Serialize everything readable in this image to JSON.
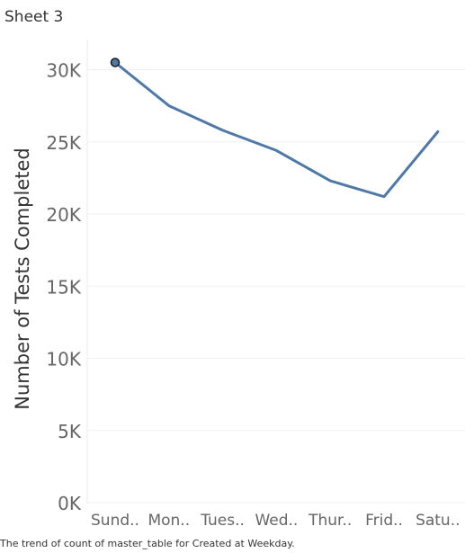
{
  "sheet": {
    "title": "Sheet 3"
  },
  "caption": "The trend of count of master_table for Created at Weekday.",
  "colors": {
    "line": "#4e79a7",
    "grid": "#f0f0f0",
    "axis_text": "#666666",
    "title_text": "#333333"
  },
  "chart_data": {
    "type": "line",
    "title": "",
    "xlabel": "",
    "ylabel": "Number of Tests Completed",
    "categories": [
      "Sund..",
      "Mon..",
      "Tues..",
      "Wed..",
      "Thur..",
      "Frid..",
      "Satu.."
    ],
    "values": [
      30500,
      27500,
      25800,
      24400,
      22300,
      21200,
      25700
    ],
    "ylim": [
      0,
      32000
    ],
    "yticks": [
      0,
      5000,
      10000,
      15000,
      20000,
      25000,
      30000
    ],
    "ytick_labels": [
      "0K",
      "5K",
      "10K",
      "15K",
      "20K",
      "25K",
      "30K"
    ],
    "highlighted_point_index": 0,
    "grid": true
  }
}
